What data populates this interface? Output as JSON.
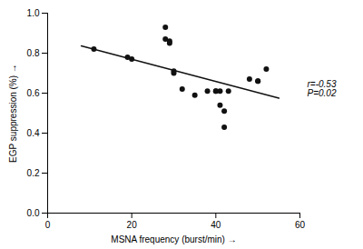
{
  "chart_data": {
    "type": "scatter",
    "x": [
      11,
      19,
      20,
      28,
      28,
      29,
      29,
      30,
      30,
      32,
      35,
      38,
      40,
      40,
      41,
      41,
      42,
      42,
      43,
      48,
      50,
      50,
      52
    ],
    "y": [
      0.82,
      0.78,
      0.77,
      0.93,
      0.87,
      0.86,
      0.85,
      0.7,
      0.71,
      0.62,
      0.59,
      0.61,
      0.61,
      0.61,
      0.61,
      0.54,
      0.51,
      0.43,
      0.61,
      0.67,
      0.66,
      0.66,
      0.72
    ],
    "color": "#111111",
    "regression_line": {
      "x": [
        8,
        55
      ],
      "y": [
        0.836,
        0.575
      ],
      "color": "#111111"
    },
    "xlabel": "MSNA frequency (burst/min)",
    "ylabel": "EGP suppression (%)",
    "annotation": "r=-0.53\nP=0.02",
    "xlim": [
      0,
      60
    ],
    "ylim": [
      0.0,
      1.0
    ],
    "xticks": [
      0,
      20,
      40,
      60
    ],
    "yticks": [
      {
        "value": 0.0,
        "label": "0.0"
      },
      {
        "value": 0.2,
        "label": "0.2"
      },
      {
        "value": 0.4,
        "label": "0.4"
      },
      {
        "value": 0.6,
        "label": "0.6"
      },
      {
        "value": 0.8,
        "label": "0.8"
      },
      {
        "value": 1.0,
        "label": "1.0"
      }
    ],
    "grid": false
  }
}
